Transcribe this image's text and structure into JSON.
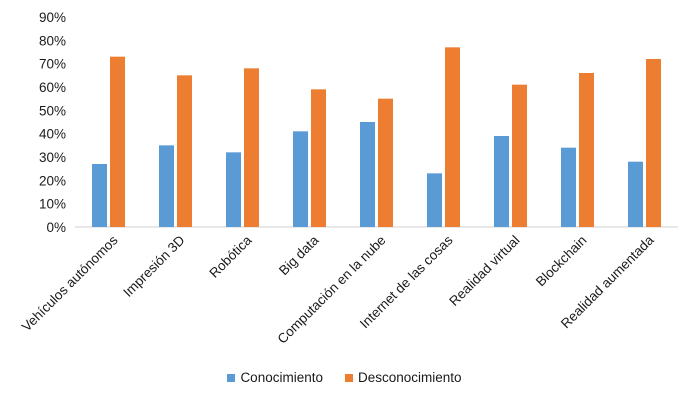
{
  "chart_data": {
    "type": "bar",
    "categories": [
      "Vehículos autónomos",
      "Impresión 3D",
      "Robótica",
      "Big data",
      "Computación en la nube",
      "Internet de las cosas",
      "Realidad virtual",
      "Blockchain",
      "Realidad aumentada"
    ],
    "series": [
      {
        "name": "Conocimiento",
        "color": "#5b9bd5",
        "values": [
          27,
          35,
          32,
          41,
          45,
          23,
          39,
          34,
          28
        ]
      },
      {
        "name": "Desconocimiento",
        "color": "#ed7d31",
        "values": [
          73,
          65,
          68,
          59,
          55,
          77,
          61,
          66,
          72
        ]
      }
    ],
    "y_ticks": [
      "0%",
      "10%",
      "20%",
      "30%",
      "40%",
      "50%",
      "60%",
      "70%",
      "80%",
      "90%"
    ],
    "ylim": [
      0,
      90
    ],
    "grid": false,
    "legend_position": "bottom"
  }
}
